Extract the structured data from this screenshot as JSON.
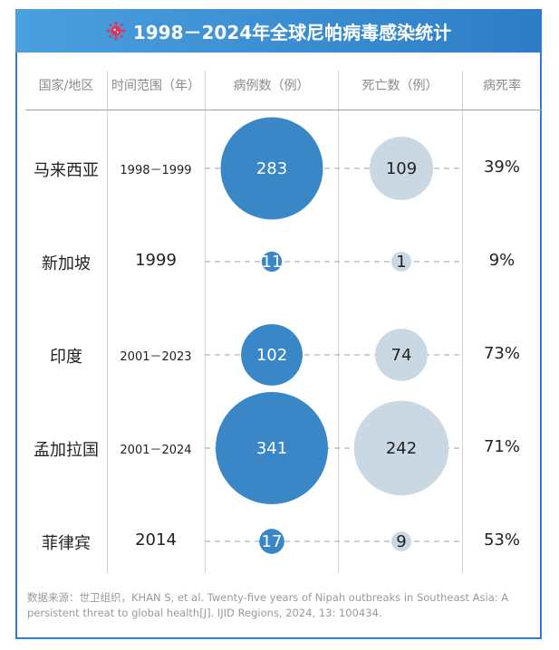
{
  "title": "1998－2024年全球尼帕病毒感染统计",
  "headers": {
    "country": "国家/地区",
    "period": "时间范围（年）",
    "cases": "病例数（例）",
    "deaths": "死亡数（例）",
    "cfr": "病死率"
  },
  "chart_data": {
    "type": "table",
    "columns": [
      "国家/地区",
      "时间范围（年）",
      "病例数（例）",
      "死亡数（例）",
      "病死率"
    ],
    "rows": [
      {
        "country": "马来西亚",
        "period": "1998－1999",
        "cases": 283,
        "deaths": 109,
        "cfr": "39%"
      },
      {
        "country": "新加坡",
        "period": "1999",
        "cases": 11,
        "deaths": 1,
        "cfr": "9%"
      },
      {
        "country": "印度",
        "period": "2001－2023",
        "cases": 102,
        "deaths": 74,
        "cfr": "73%"
      },
      {
        "country": "孟加拉国",
        "period": "2001－2024",
        "cases": 341,
        "deaths": 242,
        "cfr": "71%"
      },
      {
        "country": "菲律宾",
        "period": "2014",
        "cases": 17,
        "deaths": 9,
        "cfr": "53%"
      }
    ],
    "colors": {
      "cases": "#3a87c8",
      "deaths": "#c9d8e2",
      "title_bar": "#2f7fc8",
      "icon": "#e0345a"
    }
  },
  "source": "数据来源：世卫组织，KHAN S, et al. Twenty-five years of Nipah outbreaks in Southeast Asia: A persistent threat to global health[J]. IJID Regions, 2024, 13: 100434."
}
